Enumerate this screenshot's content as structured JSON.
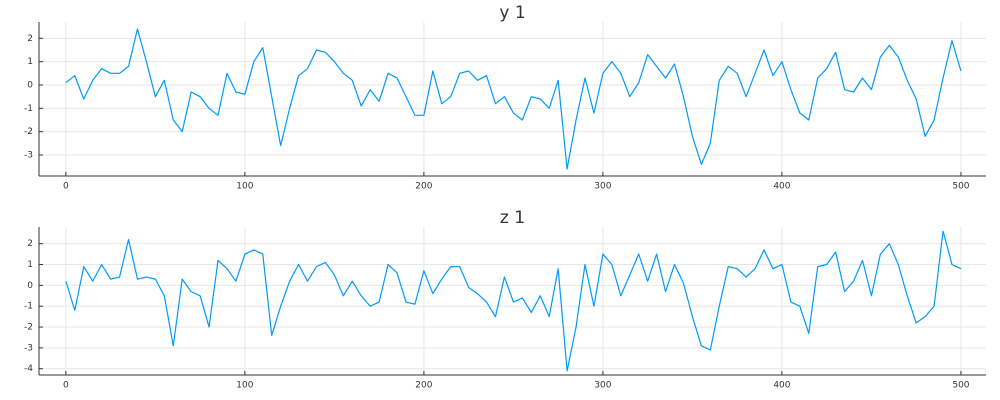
{
  "chart_data": [
    {
      "type": "line",
      "title": "y 1",
      "x": [
        0,
        5,
        10,
        15,
        20,
        25,
        30,
        35,
        40,
        45,
        50,
        55,
        60,
        65,
        70,
        75,
        80,
        85,
        90,
        95,
        100,
        105,
        110,
        115,
        120,
        125,
        130,
        135,
        140,
        145,
        150,
        155,
        160,
        165,
        170,
        175,
        180,
        185,
        190,
        195,
        200,
        205,
        210,
        215,
        220,
        225,
        230,
        235,
        240,
        245,
        250,
        255,
        260,
        265,
        270,
        275,
        280,
        285,
        290,
        295,
        300,
        305,
        310,
        315,
        320,
        325,
        330,
        335,
        340,
        345,
        350,
        355,
        360,
        365,
        370,
        375,
        380,
        385,
        390,
        395,
        400,
        405,
        410,
        415,
        420,
        425,
        430,
        435,
        440,
        445,
        450,
        455,
        460,
        465,
        470,
        475,
        480,
        485,
        490,
        495,
        500
      ],
      "series": [
        {
          "color": "#009af9",
          "values": [
            0.1,
            0.4,
            -0.6,
            0.2,
            0.7,
            0.5,
            0.5,
            0.8,
            2.4,
            1.0,
            -0.5,
            0.2,
            -1.5,
            -2.0,
            -0.3,
            -0.5,
            -1.0,
            -1.3,
            0.5,
            -0.3,
            -0.4,
            1.0,
            1.6,
            -0.5,
            -2.6,
            -1.0,
            0.4,
            0.7,
            1.5,
            1.4,
            1.0,
            0.5,
            0.2,
            -0.9,
            -0.2,
            -0.7,
            0.5,
            0.3,
            -0.5,
            -1.3,
            -1.3,
            0.6,
            -0.8,
            -0.5,
            0.5,
            0.6,
            0.2,
            0.4,
            -0.8,
            -0.5,
            -1.2,
            -1.5,
            -0.5,
            -0.6,
            -1.0,
            0.2,
            -3.6,
            -1.5,
            0.3,
            -1.2,
            0.5,
            1.0,
            0.5,
            -0.5,
            0.1,
            1.3,
            0.8,
            0.3,
            0.9,
            -0.5,
            -2.2,
            -3.4,
            -2.5,
            0.2,
            0.8,
            0.5,
            -0.5,
            0.5,
            1.5,
            0.4,
            1.0,
            -0.2,
            -1.2,
            -1.5,
            0.3,
            0.7,
            1.4,
            -0.2,
            -0.3,
            0.3,
            -0.2,
            1.2,
            1.7,
            1.2,
            0.2,
            -0.6,
            -2.2,
            -1.5,
            0.3,
            1.9,
            0.6
          ]
        }
      ],
      "xlim": [
        -15,
        514
      ],
      "xticks": [
        0,
        100,
        200,
        300,
        400,
        500
      ],
      "ylim": [
        -3.9,
        2.7
      ],
      "yticks": [
        -3,
        -2,
        -1,
        0,
        1,
        2
      ],
      "grid": true
    },
    {
      "type": "line",
      "title": "z 1",
      "x": [
        0,
        5,
        10,
        15,
        20,
        25,
        30,
        35,
        40,
        45,
        50,
        55,
        60,
        65,
        70,
        75,
        80,
        85,
        90,
        95,
        100,
        105,
        110,
        115,
        120,
        125,
        130,
        135,
        140,
        145,
        150,
        155,
        160,
        165,
        170,
        175,
        180,
        185,
        190,
        195,
        200,
        205,
        210,
        215,
        220,
        225,
        230,
        235,
        240,
        245,
        250,
        255,
        260,
        265,
        270,
        275,
        280,
        285,
        290,
        295,
        300,
        305,
        310,
        315,
        320,
        325,
        330,
        335,
        340,
        345,
        350,
        355,
        360,
        365,
        370,
        375,
        380,
        385,
        390,
        395,
        400,
        405,
        410,
        415,
        420,
        425,
        430,
        435,
        440,
        445,
        450,
        455,
        460,
        465,
        470,
        475,
        480,
        485,
        490,
        495,
        500
      ],
      "series": [
        {
          "color": "#009af9",
          "values": [
            0.2,
            -1.2,
            0.9,
            0.2,
            1.0,
            0.3,
            0.4,
            2.2,
            0.3,
            0.4,
            0.3,
            -0.5,
            -2.9,
            0.3,
            -0.3,
            -0.5,
            -2.0,
            1.2,
            0.8,
            0.2,
            1.5,
            1.7,
            1.5,
            -2.4,
            -1.0,
            0.2,
            1.0,
            0.2,
            0.9,
            1.1,
            0.5,
            -0.5,
            0.2,
            -0.5,
            -1.0,
            -0.8,
            1.0,
            0.6,
            -0.8,
            -0.9,
            0.7,
            -0.4,
            0.3,
            0.9,
            0.9,
            -0.1,
            -0.4,
            -0.8,
            -1.5,
            0.4,
            -0.8,
            -0.6,
            -1.3,
            -0.5,
            -1.5,
            0.8,
            -4.1,
            -2.0,
            1.0,
            -1.0,
            1.5,
            1.0,
            -0.5,
            0.5,
            1.5,
            0.2,
            1.5,
            -0.3,
            1.0,
            0.1,
            -1.5,
            -2.9,
            -3.1,
            -1.0,
            0.9,
            0.8,
            0.4,
            0.8,
            1.7,
            0.8,
            1.0,
            -0.8,
            -1.0,
            -2.3,
            0.9,
            1.0,
            1.6,
            -0.3,
            0.2,
            1.2,
            -0.5,
            1.5,
            2.0,
            1.0,
            -0.5,
            -1.8,
            -1.5,
            -1.0,
            2.6,
            1.0,
            0.8
          ]
        }
      ],
      "xlim": [
        -15,
        514
      ],
      "xticks": [
        0,
        100,
        200,
        300,
        400,
        500
      ],
      "ylim": [
        -4.3,
        2.8
      ],
      "yticks": [
        -4,
        -3,
        -2,
        -1,
        0,
        1,
        2
      ],
      "grid": true
    }
  ]
}
